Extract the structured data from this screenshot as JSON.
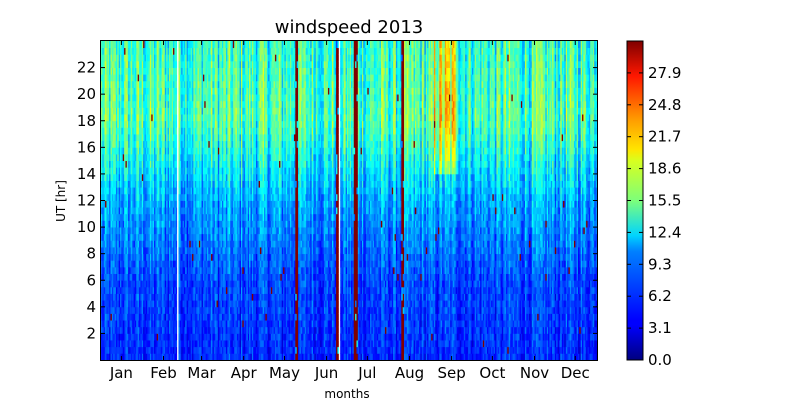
{
  "chart_data": {
    "type": "heatmap",
    "title": "windspeed 2013",
    "xlabel": "months",
    "ylabel": "UT [hr]",
    "x": {
      "tick_labels": [
        "Jan",
        "Feb",
        "Mar",
        "Apr",
        "May",
        "Jun",
        "Jul",
        "Aug",
        "Sep",
        "Oct",
        "Nov",
        "Dec"
      ],
      "tick_days": [
        15,
        46,
        74,
        105,
        135,
        166,
        196,
        227,
        258,
        288,
        319,
        349
      ],
      "range_days": [
        0,
        365
      ]
    },
    "y": {
      "ticks": [
        2,
        4,
        6,
        8,
        10,
        12,
        14,
        16,
        18,
        20,
        22
      ],
      "range": [
        0,
        24
      ]
    },
    "colorbar": {
      "ticks": [
        "0.0",
        "3.1",
        "6.2",
        "9.3",
        "12.4",
        "15.5",
        "18.6",
        "21.7",
        "24.8",
        "27.9"
      ],
      "range": [
        0,
        31
      ],
      "colormap": "jet"
    },
    "grid": false,
    "data_gaps": [
      {
        "start_day": 56.5,
        "end_day": 57.5
      },
      {
        "start_day": 175.5,
        "end_day": 176.5
      }
    ],
    "saturated_bands_days": [
      {
        "start_day": 143.3,
        "end_day": 144.8
      },
      {
        "start_day": 173.3,
        "end_day": 175.2
      },
      {
        "start_day": 186.3,
        "end_day": 189.0
      },
      {
        "start_day": 221.0,
        "end_day": 223.5
      }
    ],
    "high_wind_afternoon_period_days": [
      245,
      262
    ],
    "typical_speed_by_hour": [
      {
        "ut": 0,
        "speed": 5
      },
      {
        "ut": 6,
        "speed": 6
      },
      {
        "ut": 12,
        "speed": 9
      },
      {
        "ut": 18,
        "speed": 14
      },
      {
        "ut": 24,
        "speed": 13
      }
    ]
  }
}
